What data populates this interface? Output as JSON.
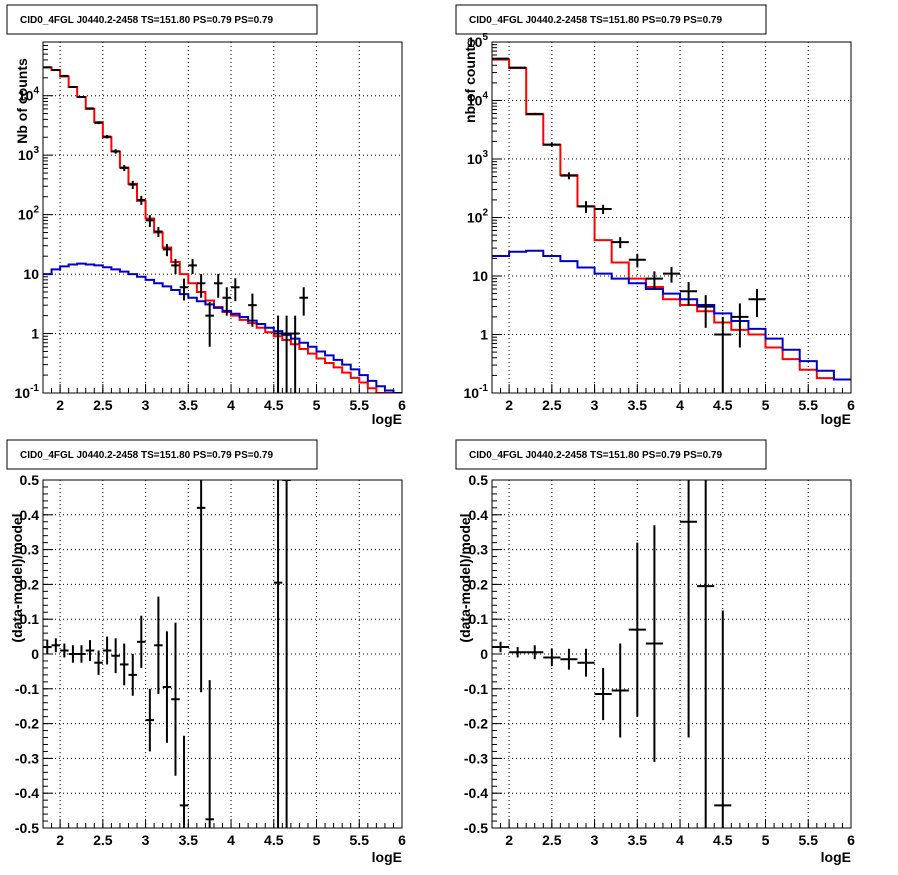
{
  "colors": {
    "data": "#000000",
    "model": "#ff0000",
    "background": "#0000cc",
    "grid": "#000000",
    "frame": "#000000"
  },
  "chart_data": [
    {
      "type": "line",
      "title": "CID0_4FGL J0440.2-2458 TS=151.80 PS=0.79 PS=0.79",
      "xlabel": "logE",
      "ylabel": "Nb of counts",
      "xlim": [
        1.8,
        6.0
      ],
      "ylim": [
        0.1,
        80000
      ],
      "yscale": "log",
      "grid": true,
      "x_ticks": [
        "2",
        "2.5",
        "3",
        "3.5",
        "4",
        "4.5",
        "5",
        "5.5",
        "6"
      ],
      "y_ticks": [
        "10^-1",
        "1",
        "10",
        "10^2",
        "10^3",
        "10^4"
      ],
      "bin_edges": [
        1.8,
        1.9,
        2.0,
        2.1,
        2.2,
        2.3,
        2.4,
        2.5,
        2.6,
        2.7,
        2.8,
        2.9,
        3.0,
        3.1,
        3.2,
        3.3,
        3.4,
        3.5,
        3.6,
        3.7,
        3.8,
        3.9,
        4.0,
        4.1,
        4.2,
        4.3,
        4.4,
        4.5,
        4.6,
        4.7,
        4.8,
        4.9,
        5.0,
        5.1,
        5.2,
        5.3,
        5.4,
        5.5,
        5.6,
        5.7,
        5.8,
        5.9,
        6.0
      ],
      "series": [
        {
          "role": "model",
          "values": [
            30000,
            27000,
            21000,
            14000,
            9500,
            6000,
            3600,
            2000,
            1150,
            620,
            330,
            170,
            86,
            50,
            28,
            16,
            10,
            7,
            5,
            3.6,
            2.8,
            2.3,
            2.0,
            1.7,
            1.5,
            1.25,
            1.05,
            0.9,
            0.78,
            0.66,
            0.55,
            0.46,
            0.38,
            0.32,
            0.27,
            0.22,
            0.18,
            0.15,
            0.12,
            0.1,
            0.09,
            0.08
          ]
        },
        {
          "role": "background",
          "values": [
            10,
            12,
            13.5,
            14.5,
            15,
            14.5,
            14,
            13,
            12,
            11,
            10,
            9,
            8,
            7,
            6.2,
            5.4,
            4.6,
            4.0,
            3.5,
            3.1,
            2.7,
            2.4,
            2.15,
            1.9,
            1.65,
            1.45,
            1.25,
            1.1,
            0.95,
            0.82,
            0.7,
            0.6,
            0.5,
            0.43,
            0.36,
            0.3,
            0.25,
            0.2,
            0.16,
            0.13,
            0.11,
            0.09
          ]
        }
      ],
      "points": [
        {
          "x": 1.85,
          "y": 30000,
          "dy": [
            500,
            500
          ]
        },
        {
          "x": 1.95,
          "y": 27000,
          "dy": [
            500,
            500
          ]
        },
        {
          "x": 2.05,
          "y": 21500,
          "dy": [
            450,
            450
          ]
        },
        {
          "x": 2.15,
          "y": 14000,
          "dy": [
            350,
            350
          ]
        },
        {
          "x": 2.25,
          "y": 9500,
          "dy": [
            300,
            300
          ]
        },
        {
          "x": 2.35,
          "y": 6100,
          "dy": [
            250,
            250
          ]
        },
        {
          "x": 2.45,
          "y": 3500,
          "dy": [
            180,
            180
          ]
        },
        {
          "x": 2.55,
          "y": 2050,
          "dy": [
            140,
            140
          ]
        },
        {
          "x": 2.65,
          "y": 1160,
          "dy": [
            100,
            100
          ]
        },
        {
          "x": 2.75,
          "y": 610,
          "dy": [
            70,
            70
          ]
        },
        {
          "x": 2.85,
          "y": 320,
          "dy": [
            50,
            50
          ]
        },
        {
          "x": 2.95,
          "y": 176,
          "dy": [
            30,
            30
          ]
        },
        {
          "x": 3.05,
          "y": 80,
          "dy": [
            18,
            18
          ]
        },
        {
          "x": 3.15,
          "y": 52,
          "dy": [
            10,
            10
          ]
        },
        {
          "x": 3.25,
          "y": 26,
          "dy": [
            6,
            6
          ]
        },
        {
          "x": 3.35,
          "y": 14,
          "dy": [
            4,
            4
          ]
        },
        {
          "x": 3.45,
          "y": 6,
          "dy": [
            2.4,
            2.4
          ]
        },
        {
          "x": 3.55,
          "y": 14,
          "dy": [
            4,
            4
          ]
        },
        {
          "x": 3.65,
          "y": 7,
          "dy": [
            3,
            3
          ]
        },
        {
          "x": 3.75,
          "y": 2,
          "dy": [
            1.4,
            1.4
          ]
        },
        {
          "x": 3.85,
          "y": 7,
          "dy": [
            3,
            3
          ]
        },
        {
          "x": 3.95,
          "y": 4,
          "dy": [
            2,
            2
          ]
        },
        {
          "x": 4.05,
          "y": 6,
          "dy": [
            2.5,
            2.5
          ]
        },
        {
          "x": 4.25,
          "y": 3,
          "dy": [
            1.7,
            1.7
          ]
        },
        {
          "x": 4.55,
          "y": 1,
          "dy": [
            0.95,
            1
          ]
        },
        {
          "x": 4.65,
          "y": 1,
          "dy": [
            0.95,
            1
          ]
        },
        {
          "x": 4.75,
          "y": 1,
          "dy": [
            0.95,
            1
          ]
        },
        {
          "x": 4.85,
          "y": 4,
          "dy": [
            2,
            2
          ]
        }
      ]
    },
    {
      "type": "line",
      "title": "CID0_4FGL J0440.2-2458 TS=151.80 PS=0.79 PS=0.79",
      "xlabel": "logE",
      "ylabel": "nb of counts",
      "xlim": [
        1.8,
        6.0
      ],
      "ylim": [
        0.1,
        100000
      ],
      "yscale": "log",
      "grid": true,
      "x_ticks": [
        "2",
        "2.5",
        "3",
        "3.5",
        "4",
        "4.5",
        "5",
        "5.5",
        "6"
      ],
      "y_ticks": [
        "10^-1",
        "1",
        "10",
        "10^2",
        "10^3",
        "10^4",
        "10^5"
      ],
      "bin_edges": [
        1.8,
        2.0,
        2.2,
        2.4,
        2.6,
        2.8,
        3.0,
        3.2,
        3.4,
        3.6,
        3.8,
        4.0,
        4.2,
        4.4,
        4.6,
        4.8,
        5.0,
        5.2,
        5.4,
        5.6,
        5.8,
        6.0
      ],
      "series": [
        {
          "role": "model",
          "values": [
            50000,
            36000,
            5800,
            1750,
            530,
            155,
            41,
            17,
            9,
            6.5,
            4,
            3.2,
            2.5,
            1.6,
            1.2,
            1.0,
            0.6,
            0.38,
            0.25,
            0.18,
            0.17
          ]
        },
        {
          "role": "background",
          "values": [
            22,
            26,
            27,
            22,
            18,
            14,
            11,
            9,
            7.5,
            6,
            5,
            4,
            3.2,
            2.3,
            1.7,
            1.25,
            0.85,
            0.55,
            0.35,
            0.24,
            0.17
          ]
        }
      ],
      "points": [
        {
          "x": 1.9,
          "y": 52000,
          "dy": [
            700,
            700
          ]
        },
        {
          "x": 2.1,
          "y": 36500,
          "dy": [
            600,
            600
          ]
        },
        {
          "x": 2.3,
          "y": 5900,
          "dy": [
            240,
            240
          ]
        },
        {
          "x": 2.5,
          "y": 1760,
          "dy": [
            130,
            130
          ]
        },
        {
          "x": 2.7,
          "y": 520,
          "dy": [
            70,
            70
          ]
        },
        {
          "x": 2.9,
          "y": 155,
          "dy": [
            35,
            35
          ]
        },
        {
          "x": 3.1,
          "y": 140,
          "dy": [
            25,
            25
          ]
        },
        {
          "x": 3.3,
          "y": 38,
          "dy": [
            8,
            8
          ]
        },
        {
          "x": 3.5,
          "y": 19,
          "dy": [
            5,
            5
          ]
        },
        {
          "x": 3.7,
          "y": 9,
          "dy": [
            3,
            3
          ]
        },
        {
          "x": 3.9,
          "y": 11,
          "dy": [
            3.3,
            3.3
          ]
        },
        {
          "x": 4.1,
          "y": 5.5,
          "dy": [
            2.4,
            2.4
          ]
        },
        {
          "x": 4.3,
          "y": 3,
          "dy": [
            1.7,
            1.7
          ]
        },
        {
          "x": 4.5,
          "y": 1,
          "dy": [
            0.95,
            1
          ]
        },
        {
          "x": 4.7,
          "y": 2,
          "dy": [
            1.4,
            1.4
          ]
        },
        {
          "x": 4.9,
          "y": 4,
          "dy": [
            2,
            2
          ]
        }
      ]
    },
    {
      "type": "scatter",
      "title": "CID0_4FGL J0440.2-2458 TS=151.80 PS=0.79 PS=0.79",
      "xlabel": "logE",
      "ylabel": "(data-model)/model",
      "xlim": [
        1.8,
        6.0
      ],
      "ylim": [
        -0.5,
        0.5
      ],
      "yscale": "linear",
      "grid": true,
      "x_ticks": [
        "2",
        "2.5",
        "3",
        "3.5",
        "4",
        "4.5",
        "5",
        "5.5",
        "6"
      ],
      "y_ticks": [
        "-0.5",
        "-0.4",
        "-0.3",
        "-0.2",
        "-0.1",
        "0",
        "0.1",
        "0.2",
        "0.3",
        "0.4",
        "0.5"
      ],
      "bin_width": 0.1,
      "points": [
        {
          "x": 1.85,
          "y": 0.02,
          "dy": [
            0.02,
            0.02
          ]
        },
        {
          "x": 1.95,
          "y": 0.025,
          "dy": [
            0.02,
            0.02
          ]
        },
        {
          "x": 2.05,
          "y": 0.01,
          "dy": [
            0.02,
            0.02
          ]
        },
        {
          "x": 2.15,
          "y": 0.0,
          "dy": [
            0.025,
            0.025
          ]
        },
        {
          "x": 2.25,
          "y": 0.0,
          "dy": [
            0.025,
            0.025
          ]
        },
        {
          "x": 2.35,
          "y": 0.01,
          "dy": [
            0.03,
            0.03
          ]
        },
        {
          "x": 2.45,
          "y": -0.025,
          "dy": [
            0.035,
            0.035
          ]
        },
        {
          "x": 2.55,
          "y": 0.01,
          "dy": [
            0.04,
            0.04
          ]
        },
        {
          "x": 2.65,
          "y": -0.005,
          "dy": [
            0.05,
            0.05
          ]
        },
        {
          "x": 2.75,
          "y": -0.03,
          "dy": [
            0.06,
            0.06
          ]
        },
        {
          "x": 2.85,
          "y": -0.06,
          "dy": [
            0.06,
            0.06
          ]
        },
        {
          "x": 2.95,
          "y": 0.035,
          "dy": [
            0.075,
            0.075
          ]
        },
        {
          "x": 3.05,
          "y": -0.19,
          "dy": [
            0.09,
            0.09
          ]
        },
        {
          "x": 3.15,
          "y": 0.025,
          "dy": [
            0.14,
            0.14
          ]
        },
        {
          "x": 3.25,
          "y": -0.095,
          "dy": [
            0.16,
            0.16
          ]
        },
        {
          "x": 3.35,
          "y": -0.13,
          "dy": [
            0.22,
            0.22
          ]
        },
        {
          "x": 3.45,
          "y": -0.435,
          "dy": [
            0.2,
            0.2
          ]
        },
        {
          "x": 3.65,
          "y": 0.42,
          "dy": [
            0.53,
            0.53
          ]
        },
        {
          "x": 3.75,
          "y": -0.475,
          "dy": [
            0.4,
            0.4
          ]
        },
        {
          "x": 4.55,
          "y": 0.205,
          "dy": [
            1.0,
            1.0
          ]
        },
        {
          "x": 4.65,
          "y": 0.5,
          "dy": [
            1.0,
            1.0
          ]
        }
      ]
    },
    {
      "type": "scatter",
      "title": "CID0_4FGL J0440.2-2458 TS=151.80 PS=0.79 PS=0.79",
      "xlabel": "logE",
      "ylabel": "(data-model)/model",
      "xlim": [
        1.8,
        6.0
      ],
      "ylim": [
        -0.5,
        0.5
      ],
      "yscale": "linear",
      "grid": true,
      "x_ticks": [
        "2",
        "2.5",
        "3",
        "3.5",
        "4",
        "4.5",
        "5",
        "5.5",
        "6"
      ],
      "y_ticks": [
        "-0.5",
        "-0.4",
        "-0.3",
        "-0.2",
        "-0.1",
        "0",
        "0.1",
        "0.2",
        "0.3",
        "0.4",
        "0.5"
      ],
      "bin_width": 0.2,
      "points": [
        {
          "x": 1.9,
          "y": 0.02,
          "dy": [
            0.015,
            0.015
          ]
        },
        {
          "x": 2.1,
          "y": 0.005,
          "dy": [
            0.015,
            0.015
          ]
        },
        {
          "x": 2.3,
          "y": 0.005,
          "dy": [
            0.02,
            0.02
          ]
        },
        {
          "x": 2.5,
          "y": -0.01,
          "dy": [
            0.025,
            0.025
          ]
        },
        {
          "x": 2.7,
          "y": -0.015,
          "dy": [
            0.03,
            0.03
          ]
        },
        {
          "x": 2.9,
          "y": -0.025,
          "dy": [
            0.04,
            0.04
          ]
        },
        {
          "x": 3.1,
          "y": -0.115,
          "dy": [
            0.075,
            0.075
          ]
        },
        {
          "x": 3.3,
          "y": -0.105,
          "dy": [
            0.135,
            0.135
          ]
        },
        {
          "x": 3.5,
          "y": 0.07,
          "dy": [
            0.25,
            0.25
          ]
        },
        {
          "x": 3.7,
          "y": 0.03,
          "dy": [
            0.34,
            0.34
          ]
        },
        {
          "x": 4.1,
          "y": 0.38,
          "dy": [
            0.62,
            0.62
          ]
        },
        {
          "x": 4.3,
          "y": 0.195,
          "dy": [
            1.0,
            1.0
          ]
        },
        {
          "x": 4.5,
          "y": -0.435,
          "dy": [
            0.56,
            0.56
          ]
        }
      ]
    }
  ]
}
